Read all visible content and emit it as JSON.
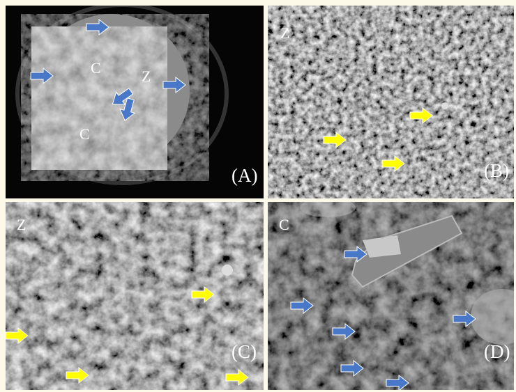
{
  "panels": [
    {
      "label": "(A)",
      "annotations": [
        "C",
        "Z",
        "C"
      ]
    },
    {
      "label": "(B)",
      "annotations": [
        "Z"
      ]
    },
    {
      "label": "(C)",
      "annotations": [
        "Z"
      ]
    },
    {
      "label": "(D)",
      "annotations": [
        "C"
      ]
    }
  ]
}
